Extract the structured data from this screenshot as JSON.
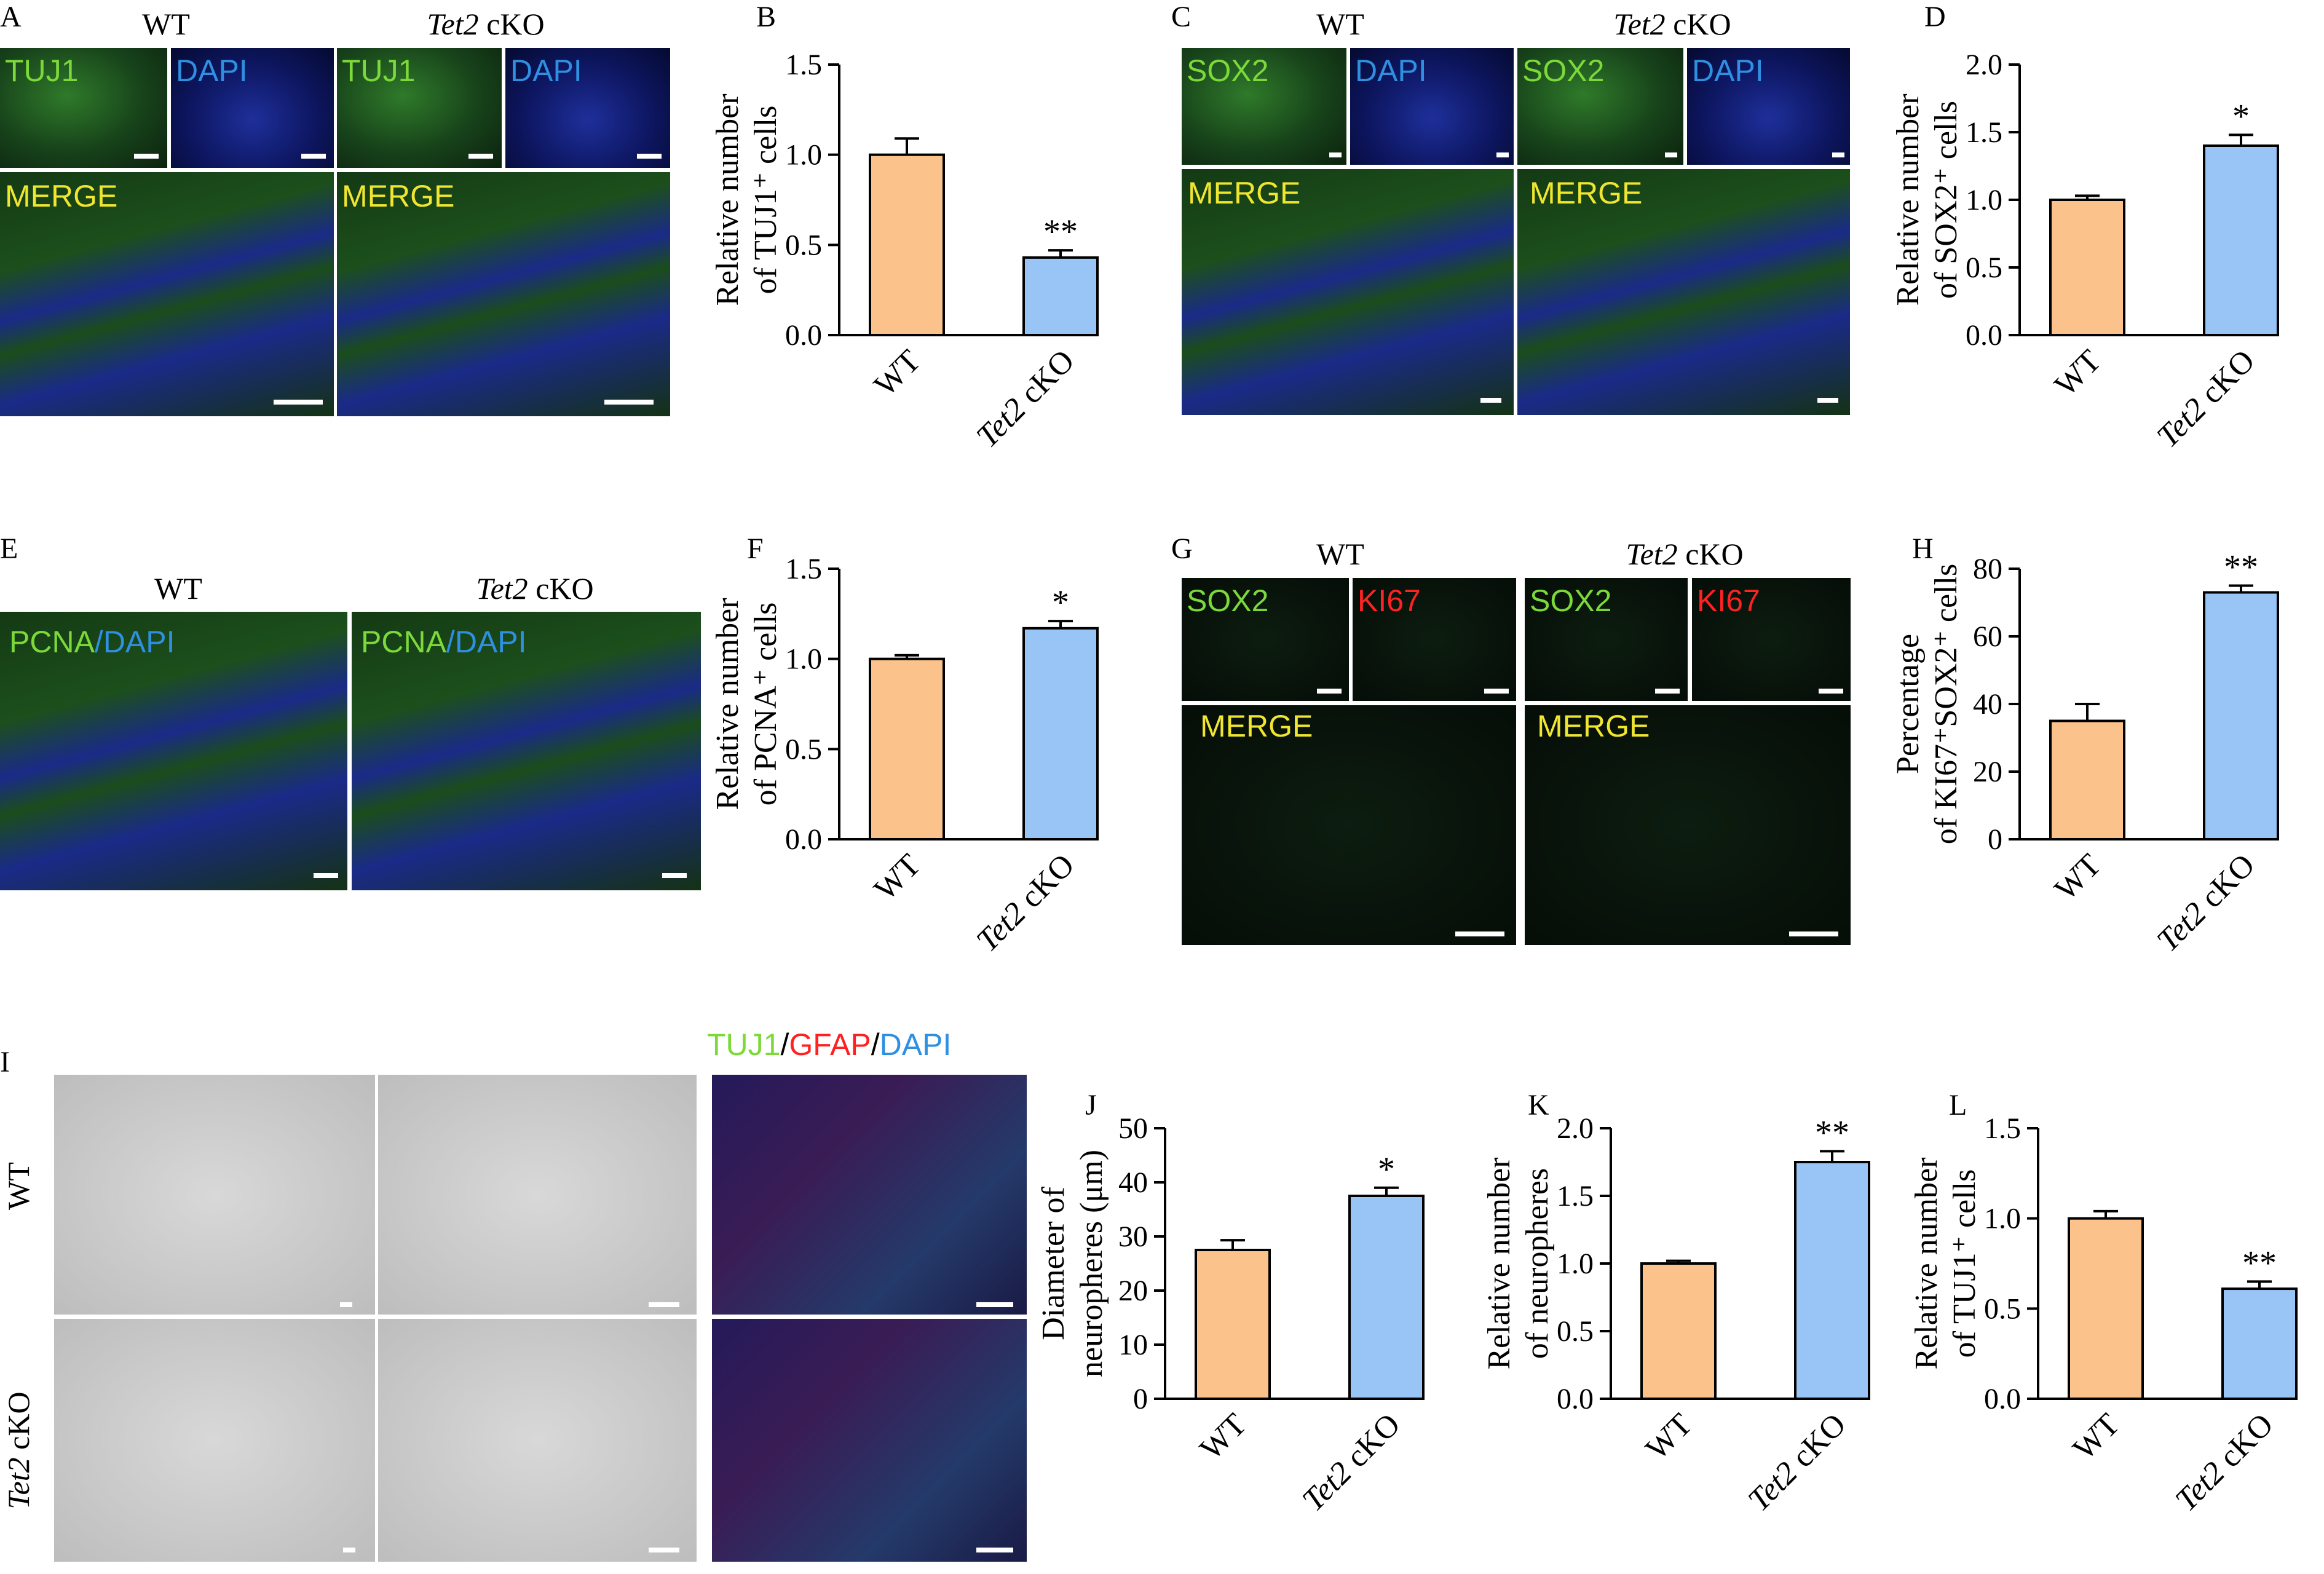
{
  "colors": {
    "wt": "#fcc28b",
    "cko": "#99c4f6",
    "tuj1": "#7cd93a",
    "dapi": "#2f8fe0",
    "gfap": "#ff2020",
    "merge": "#f0e630",
    "ki67": "#ff2222"
  },
  "panels": {
    "A": "A",
    "B": "B",
    "C": "C",
    "D": "D",
    "E": "E",
    "F": "F",
    "G": "G",
    "H": "H",
    "I": "I",
    "J": "J",
    "K": "K",
    "L": "L"
  },
  "labels": {
    "wt": "WT",
    "tet2": "Tet2",
    "cko": " cKO",
    "tuj1": "TUJ1",
    "dapi": "DAPI",
    "sox2": "SOX2",
    "merge": "MERGE",
    "pcna": "PCNA",
    "slash": "/",
    "ki67": "KI67",
    "gfap": "GFAP"
  },
  "chart_data": [
    {
      "id": "B",
      "type": "bar",
      "categories": [
        "WT",
        "Tet2 cKO"
      ],
      "values": [
        1.0,
        0.43
      ],
      "errors": [
        0.09,
        0.04
      ],
      "ylim": [
        0,
        1.5
      ],
      "ticks": [
        "0.0",
        "0.5",
        "1.0",
        "1.5"
      ],
      "ylabel_lines": [
        "Relative number",
        "of TUJ1⁺ cells"
      ],
      "sig": [
        "",
        "**"
      ]
    },
    {
      "id": "D",
      "type": "bar",
      "categories": [
        "WT",
        "Tet2 cKO"
      ],
      "values": [
        1.0,
        1.4
      ],
      "errors": [
        0.03,
        0.08
      ],
      "ylim": [
        0,
        2.0
      ],
      "ticks": [
        "0.0",
        "0.5",
        "1.0",
        "1.5",
        "2.0"
      ],
      "ylabel_lines": [
        "Relative number",
        "of SOX2⁺ cells"
      ],
      "sig": [
        "",
        "*"
      ]
    },
    {
      "id": "F",
      "type": "bar",
      "categories": [
        "WT",
        "Tet2 cKO"
      ],
      "values": [
        1.0,
        1.17
      ],
      "errors": [
        0.02,
        0.04
      ],
      "ylim": [
        0,
        1.5
      ],
      "ticks": [
        "0.0",
        "0.5",
        "1.0",
        "1.5"
      ],
      "ylabel_lines": [
        "Relative number",
        "of PCNA⁺ cells"
      ],
      "sig": [
        "",
        "*"
      ]
    },
    {
      "id": "H",
      "type": "bar",
      "categories": [
        "WT",
        "Tet2 cKO"
      ],
      "values": [
        35,
        73
      ],
      "errors": [
        5,
        2
      ],
      "ylim": [
        0,
        80
      ],
      "ticks": [
        "0",
        "20",
        "40",
        "60",
        "80"
      ],
      "ylabel_lines": [
        "Percentage",
        "of KI67⁺SOX2⁺ cells"
      ],
      "sig": [
        "",
        "**"
      ]
    },
    {
      "id": "J",
      "type": "bar",
      "categories": [
        "WT",
        "Tet2 cKO"
      ],
      "values": [
        27.5,
        37.5
      ],
      "errors": [
        1.8,
        1.5
      ],
      "ylim": [
        0,
        50
      ],
      "ticks": [
        "0",
        "10",
        "20",
        "30",
        "40",
        "50"
      ],
      "ylabel_lines": [
        "Diameter of",
        "neuropheres (μm)"
      ],
      "sig": [
        "",
        "*"
      ]
    },
    {
      "id": "K",
      "type": "bar",
      "categories": [
        "WT",
        "Tet2 cKO"
      ],
      "values": [
        1.0,
        1.75
      ],
      "errors": [
        0.02,
        0.08
      ],
      "ylim": [
        0,
        2.0
      ],
      "ticks": [
        "0.0",
        "0.5",
        "1.0",
        "1.5",
        "2.0"
      ],
      "ylabel_lines": [
        "Relative number",
        "of neuropheres"
      ],
      "sig": [
        "",
        "**"
      ]
    },
    {
      "id": "L",
      "type": "bar",
      "categories": [
        "WT",
        "Tet2 cKO"
      ],
      "values": [
        1.0,
        0.61
      ],
      "errors": [
        0.04,
        0.04
      ],
      "ylim": [
        0,
        1.5
      ],
      "ticks": [
        "0.0",
        "0.5",
        "1.0",
        "1.5"
      ],
      "ylabel_lines": [
        "Relative number",
        "of TUJ1⁺ cells"
      ],
      "sig": [
        "",
        "**"
      ]
    }
  ]
}
